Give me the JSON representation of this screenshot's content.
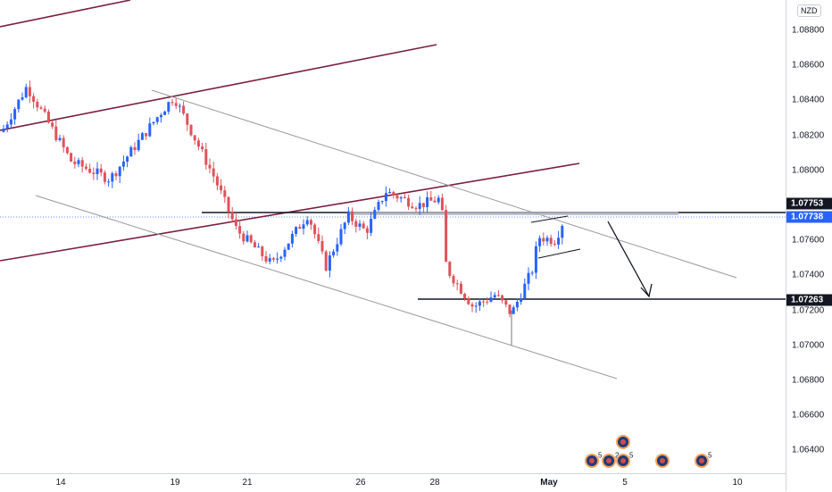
{
  "currency": "NZD",
  "chart_data": {
    "type": "candlestick",
    "y_axis": {
      "ticks": [
        "1.08800",
        "1.08600",
        "1.08400",
        "1.08200",
        "1.08000",
        "1.07600",
        "1.07400",
        "1.07200",
        "1.07000",
        "1.06800",
        "1.06600",
        "1.06400"
      ],
      "range": [
        1.0632,
        1.09
      ]
    },
    "x_axis": {
      "ticks": [
        "14",
        "19",
        "21",
        "26",
        "28",
        "May",
        "5",
        "10"
      ]
    },
    "price_labels": [
      {
        "value": "1.07753",
        "color": "#131722"
      },
      {
        "value": "1.07738",
        "color": "#2962ff"
      },
      {
        "value": "1.07263",
        "color": "#131722"
      }
    ],
    "horizontal_levels": [
      1.07753,
      1.07738,
      1.07263
    ],
    "colors": {
      "up": "#2962ff",
      "down": "#e0525a",
      "channel": "#7b1f3f",
      "trendline": "#9a9a9a"
    },
    "events": [
      {
        "count": "5"
      },
      {
        "count": "2"
      },
      {
        "count": "5"
      },
      {
        "count": ""
      },
      {
        "count": "5"
      }
    ]
  }
}
